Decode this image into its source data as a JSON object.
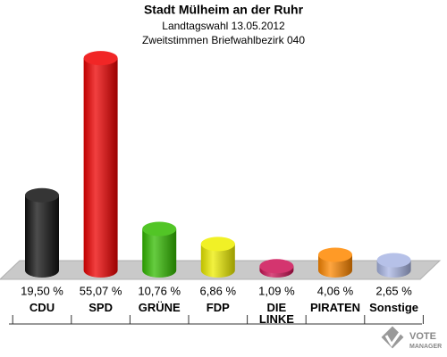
{
  "chart_data": {
    "type": "bar",
    "title": "Stadt Mülheim an der Ruhr",
    "subtitle": "Landtagswahl 13.05.2012",
    "subtitle2": "Zweitstimmen Briefwahlbezirk 040",
    "categories": [
      "CDU",
      "SPD",
      "GRÜNE",
      "FDP",
      "DIE LINKE",
      "PIRATEN",
      "Sonstige"
    ],
    "values": [
      19.5,
      55.07,
      10.76,
      6.86,
      1.09,
      4.06,
      2.65
    ],
    "value_labels": [
      "19,50 %",
      "55,07 %",
      "10,76 %",
      "6,86 %",
      "1,09 %",
      "4,06 %",
      "2,65 %"
    ],
    "colors": [
      "#111111",
      "#ee0000",
      "#33bb00",
      "#eeee00",
      "#cc1155",
      "#ff8800",
      "#a9b6e4"
    ],
    "logo": [
      "VOTE",
      "MANAGER"
    ]
  }
}
